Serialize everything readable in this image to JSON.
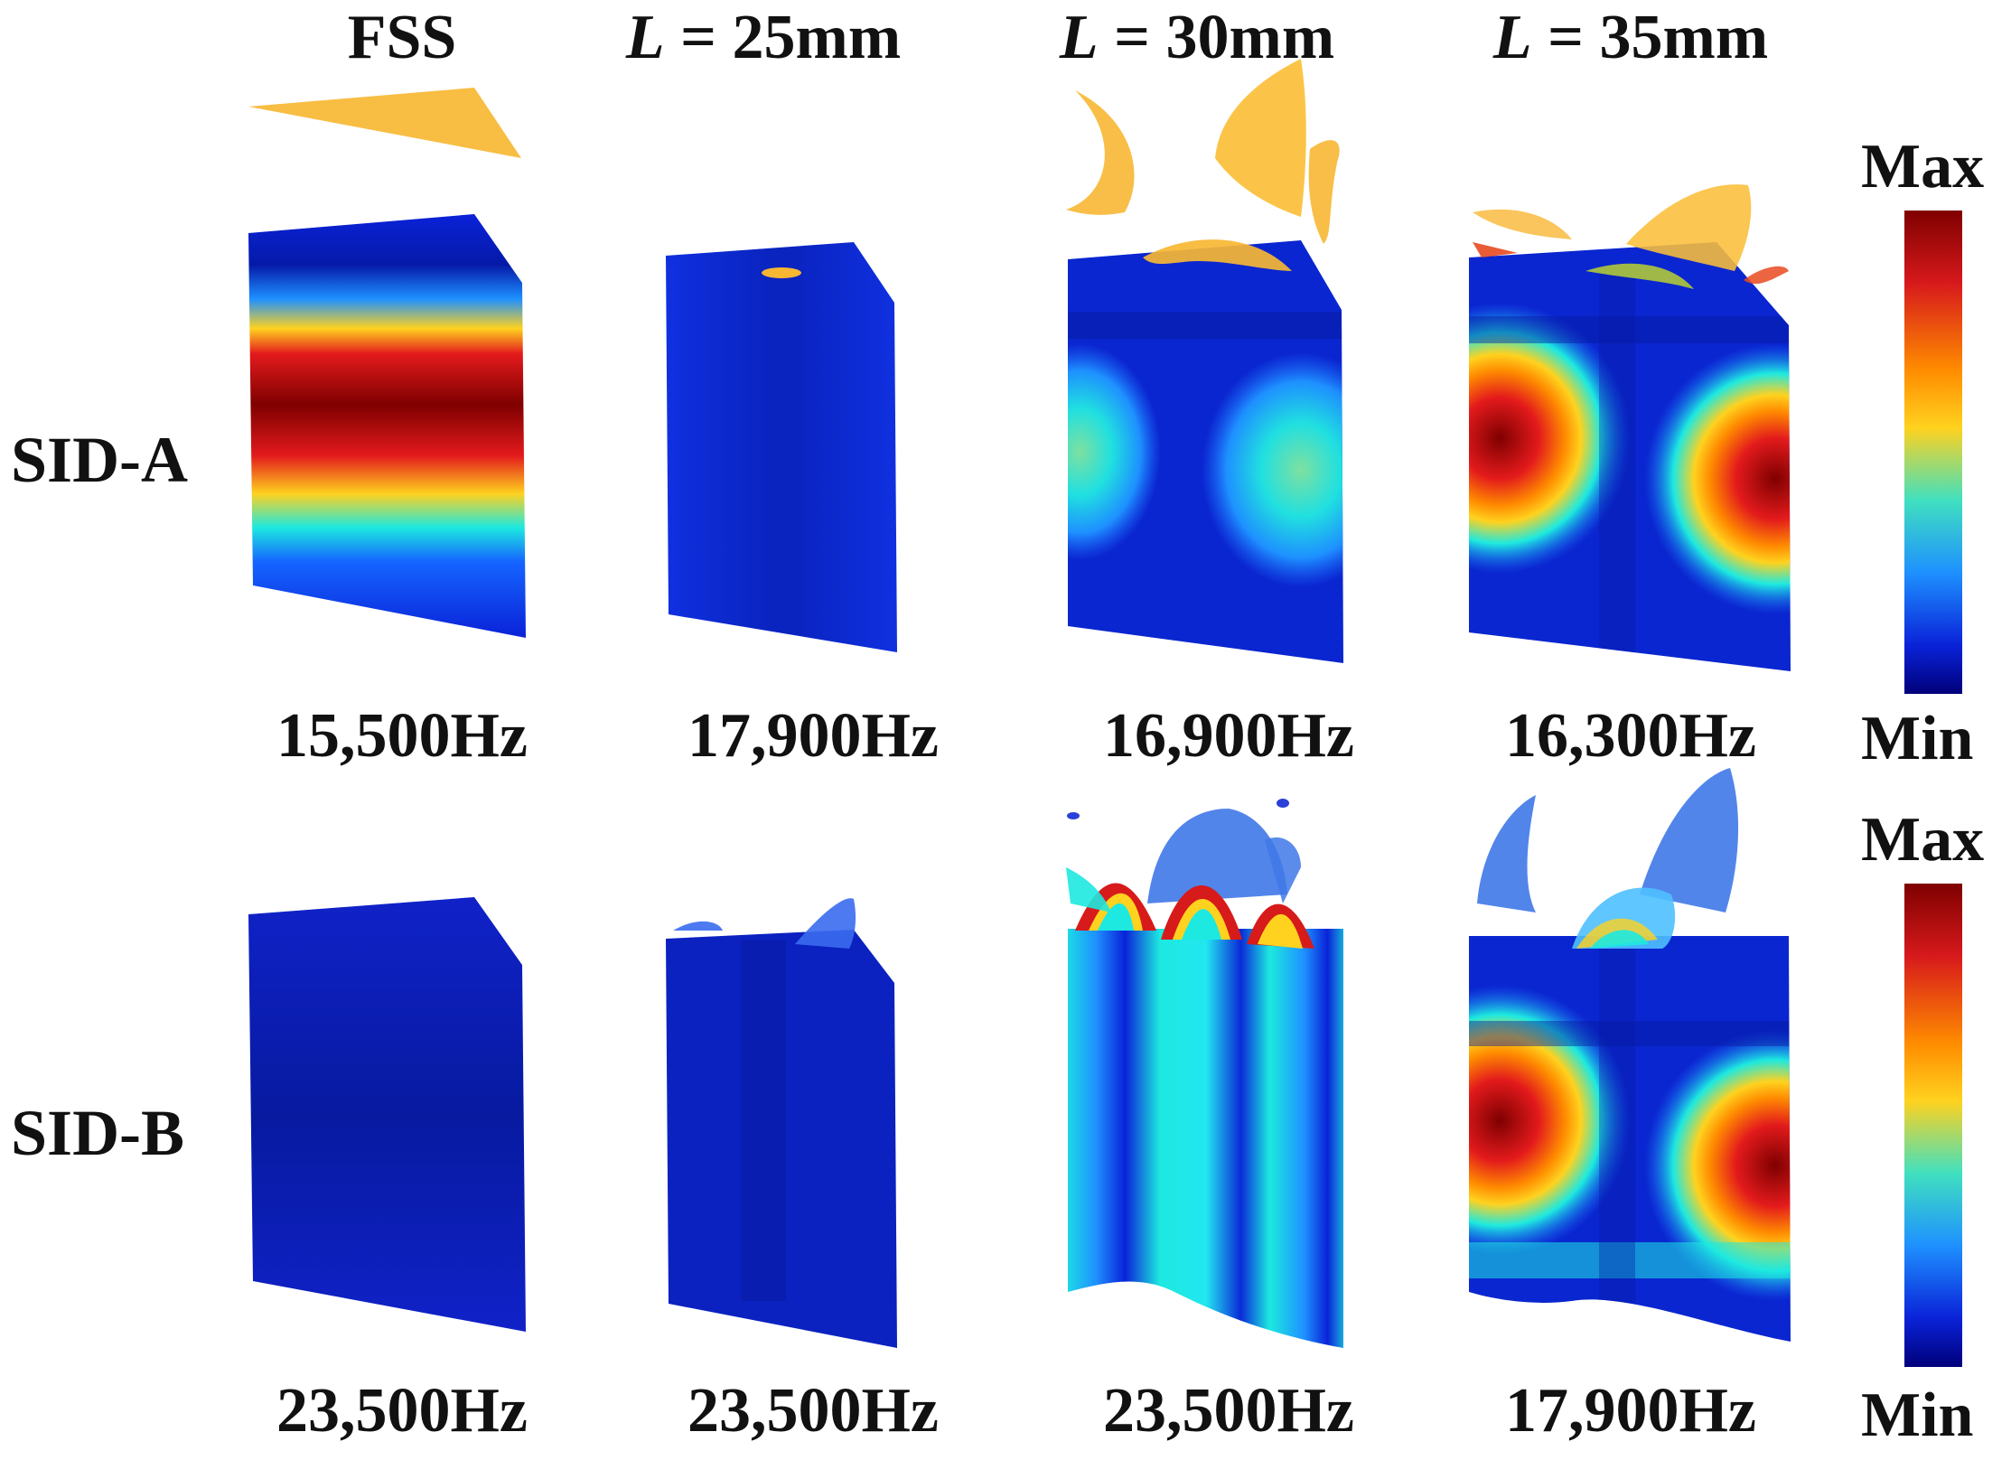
{
  "columns": [
    {
      "head": "FSS",
      "var": "",
      "eq": ""
    },
    {
      "head": "",
      "var": "L",
      "eq": " = 25mm"
    },
    {
      "head": "",
      "var": "L",
      "eq": " = 30mm"
    },
    {
      "head": "",
      "var": "L",
      "eq": " = 35mm"
    }
  ],
  "rows": [
    {
      "label": "SID-A",
      "frequencies": [
        "15,500Hz",
        "17,900Hz",
        "16,900Hz",
        "16,300Hz"
      ]
    },
    {
      "label": "SID-B",
      "frequencies": [
        "23,500Hz",
        "23,500Hz",
        "23,500Hz",
        "17,900Hz"
      ]
    }
  ],
  "colorbar": {
    "max_label": "Max",
    "min_label": "Min",
    "stops": [
      "#7f0000",
      "#d7191c",
      "#ff8c00",
      "#ffd21f",
      "#40e0c0",
      "#1e90ff",
      "#0a22d8",
      "#00007a"
    ]
  },
  "colors": {
    "isosurface": "#f7b733",
    "field_low": "#0a1fd0",
    "field_mid": "#1de9e0",
    "field_high": "#c00000"
  }
}
